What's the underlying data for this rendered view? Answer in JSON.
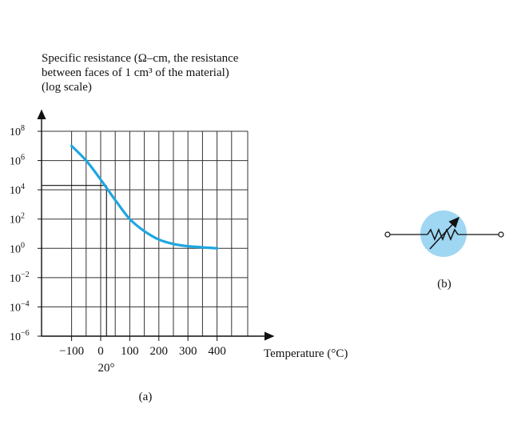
{
  "panel_a": {
    "ylabel_lines": [
      "Specific resistance (Ω–cm, the resistance",
      "between faces of 1 cm³ of the material)",
      "(log scale)"
    ],
    "xlabel": "Temperature (°C)",
    "x_annotation": "20°",
    "caption": "(a)"
  },
  "panel_b": {
    "caption": "(b)",
    "symbol_icon": "thermistor-symbol-icon",
    "highlight_color": "#9fd6f2"
  },
  "colors": {
    "curve": "#1fa6e0",
    "axes": "#111111"
  },
  "chart_data": {
    "type": "line",
    "title": "",
    "xlabel": "Temperature (°C)",
    "ylabel": "Specific resistance (Ω–cm, the resistance between faces of 1 cm³ of the material) (log scale)",
    "yscale": "log",
    "xlim": [
      -150,
      400
    ],
    "ylim": [
      1e-06,
      100000000.0
    ],
    "x_ticks": [
      -100,
      0,
      100,
      200,
      300,
      400
    ],
    "x_tick_labels": [
      "−100",
      "0",
      "100",
      "200",
      "300",
      "400"
    ],
    "y_tick_exponents": [
      8,
      6,
      4,
      2,
      0,
      -2,
      -4,
      -6
    ],
    "y_tick_base": "10",
    "grid": true,
    "series": [
      {
        "x": [
          -100,
          -50,
          0,
          50,
          100,
          150,
          200,
          250,
          300,
          400
        ],
        "y": [
          10000000,
          1000000,
          50000,
          2000,
          100,
          15,
          4,
          2,
          1.4,
          1
        ]
      }
    ],
    "reference_x": 20,
    "reference_y": 20000
  }
}
